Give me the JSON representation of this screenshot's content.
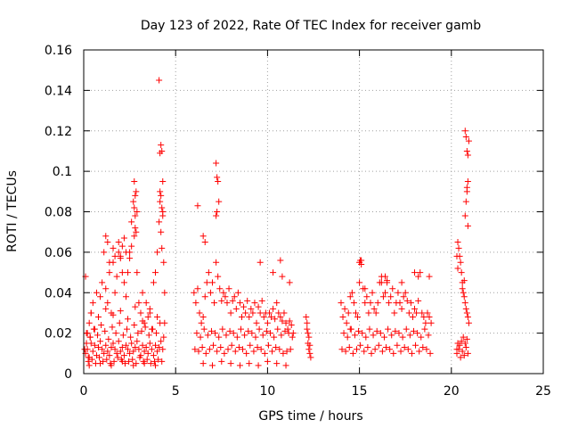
{
  "chart_data": {
    "type": "scatter",
    "title": "Day 123 of 2022, Rate Of TEC Index for receiver gamb",
    "xlabel": "GPS time / hours",
    "ylabel": "ROTI / TECUs",
    "xlim": [
      0,
      25
    ],
    "ylim": [
      0,
      0.16
    ],
    "xticks": [
      0,
      5,
      10,
      15,
      20,
      25
    ],
    "xtick_labels": [
      "0",
      "5",
      "10",
      "15",
      "20",
      "25"
    ],
    "yticks": [
      0,
      0.02,
      0.04,
      0.06,
      0.08,
      0.1,
      0.12,
      0.14,
      0.16
    ],
    "ytick_labels": [
      "0",
      "0.02",
      "0.04",
      "0.06",
      "0.08",
      "0.1",
      "0.12",
      "0.14",
      "0.16"
    ],
    "grid": true,
    "marker": "+",
    "color": "#ff0000",
    "series": [
      {
        "x": [
          0.05,
          0.1,
          0.15,
          0.2,
          0.25,
          0.3,
          0.35,
          0.4,
          0.5,
          0.6,
          0.7,
          0.8,
          0.9,
          1.0,
          1.1,
          1.2,
          1.3,
          1.4,
          1.5,
          1.6,
          1.7,
          1.8,
          1.9,
          2.0,
          2.1,
          2.2,
          2.3,
          2.4,
          2.5,
          2.6,
          2.7,
          2.75,
          2.8,
          2.85,
          2.9,
          3.0,
          3.1,
          3.2,
          3.3,
          3.4,
          3.5,
          3.6,
          3.7,
          3.8,
          3.9,
          4.0,
          4.1,
          4.15,
          4.2,
          4.25,
          4.3,
          4.35,
          4.4,
          0.1,
          0.2,
          0.3,
          0.4,
          0.5,
          0.6,
          0.7,
          0.8,
          0.9,
          1.0,
          1.1,
          1.2,
          1.3,
          1.4,
          1.5,
          1.6,
          1.7,
          1.8,
          1.9,
          2.0,
          2.1,
          2.2,
          2.3,
          2.4,
          2.5,
          2.6,
          2.7,
          2.8,
          2.9,
          3.0,
          3.1,
          3.2,
          3.3,
          3.4,
          3.5,
          3.6,
          3.7,
          3.8,
          3.9,
          4.0,
          4.1,
          4.2,
          4.3,
          0.15,
          0.35,
          0.55,
          0.75,
          0.95,
          1.15,
          1.35,
          1.55,
          1.75,
          1.95,
          2.15,
          2.35,
          2.55,
          2.75,
          2.95,
          3.15,
          3.35,
          3.55,
          3.75,
          3.95,
          4.15,
          4.35,
          0.25,
          0.45,
          0.65,
          0.85,
          1.05,
          1.25,
          1.45,
          1.65,
          1.85,
          2.05,
          2.25,
          2.45,
          2.65,
          2.85,
          3.05,
          3.25,
          3.45,
          3.65,
          3.85,
          4.05,
          4.25,
          0.4,
          0.8,
          1.2,
          1.6,
          2.0,
          2.4,
          2.8,
          3.2,
          3.6,
          4.0,
          4.4,
          0.3,
          0.9,
          1.5,
          2.1,
          2.7,
          3.3,
          3.9,
          2.75,
          2.8,
          2.85,
          2.9,
          2.8,
          2.75,
          4.1,
          4.15,
          4.2,
          4.25,
          4.3,
          4.2,
          4.25,
          4.3,
          4.15,
          1.2,
          1.3,
          1.4,
          1.6,
          1.7,
          1.9,
          2.0,
          2.1,
          2.2,
          2.3,
          2.5,
          2.6,
          6.0,
          6.1,
          6.2,
          6.3,
          6.4,
          6.5,
          6.6,
          6.7,
          6.8,
          6.9,
          7.0,
          7.1,
          7.2,
          7.3,
          7.4,
          7.5,
          7.6,
          7.7,
          7.8,
          7.9,
          8.0,
          8.1,
          8.2,
          8.3,
          8.4,
          8.5,
          8.6,
          8.7,
          8.8,
          8.9,
          9.0,
          9.1,
          9.2,
          9.3,
          9.4,
          9.5,
          9.6,
          9.7,
          9.8,
          9.9,
          10.0,
          10.1,
          10.2,
          10.3,
          10.4,
          10.5,
          10.6,
          10.7,
          10.8,
          10.9,
          11.0,
          11.1,
          11.2,
          11.3,
          11.4,
          6.05,
          6.25,
          6.45,
          6.65,
          6.85,
          7.05,
          7.25,
          7.45,
          7.65,
          7.85,
          8.05,
          8.25,
          8.45,
          8.65,
          8.85,
          9.05,
          9.25,
          9.45,
          9.65,
          9.85,
          10.05,
          10.25,
          10.45,
          10.65,
          10.85,
          11.05,
          11.25,
          6.15,
          6.35,
          6.55,
          6.75,
          6.95,
          7.15,
          7.35,
          7.55,
          7.75,
          7.95,
          8.15,
          8.35,
          8.55,
          8.75,
          8.95,
          9.15,
          9.35,
          9.55,
          9.75,
          9.95,
          10.15,
          10.35,
          10.55,
          10.75,
          10.95,
          11.15,
          11.35,
          6.5,
          7.0,
          7.5,
          8.0,
          8.5,
          9.0,
          9.5,
          10.0,
          10.5,
          11.0,
          6.2,
          7.2,
          7.25,
          7.3,
          7.35,
          7.2,
          7.25,
          6.5,
          6.6,
          9.6,
          10.3,
          10.7,
          10.8,
          11.2,
          12.1,
          12.15,
          12.2,
          12.25,
          12.3,
          12.35,
          12.2,
          12.25,
          12.15,
          12.3,
          14.0,
          14.1,
          14.2,
          14.3,
          14.4,
          14.5,
          14.6,
          14.7,
          14.8,
          14.9,
          15.0,
          15.1,
          15.2,
          15.3,
          15.4,
          15.5,
          15.6,
          15.7,
          15.8,
          15.9,
          16.0,
          16.1,
          16.2,
          16.3,
          16.4,
          16.5,
          16.6,
          16.7,
          16.8,
          16.9,
          17.0,
          17.1,
          17.2,
          17.3,
          17.4,
          17.5,
          17.6,
          17.7,
          17.8,
          17.9,
          18.0,
          18.1,
          18.2,
          18.3,
          18.4,
          18.5,
          18.6,
          18.7,
          18.8,
          18.9,
          14.05,
          14.25,
          14.45,
          14.65,
          14.85,
          15.05,
          15.25,
          15.45,
          15.65,
          15.85,
          16.05,
          16.25,
          16.45,
          16.65,
          16.85,
          17.05,
          17.25,
          17.45,
          17.65,
          17.85,
          18.05,
          18.25,
          18.45,
          18.65,
          18.85,
          14.15,
          14.35,
          14.55,
          14.75,
          14.95,
          15.15,
          15.35,
          15.55,
          15.75,
          15.95,
          16.15,
          16.35,
          16.55,
          16.75,
          16.95,
          17.15,
          17.35,
          17.55,
          17.75,
          17.95,
          18.15,
          18.35,
          18.55,
          18.75,
          15.0,
          15.05,
          15.1,
          14.5,
          15.3,
          16.2,
          16.4,
          16.5,
          17.3,
          18.0,
          18.2,
          18.8,
          20.3,
          20.35,
          20.4,
          20.45,
          20.5,
          20.55,
          20.6,
          20.65,
          20.7,
          20.75,
          20.8,
          20.85,
          20.9,
          20.95,
          20.3,
          20.4,
          20.5,
          20.6,
          20.7,
          20.8,
          20.9,
          20.35,
          20.45,
          20.55,
          20.65,
          20.75,
          20.85,
          20.3,
          20.35,
          20.6,
          20.7,
          20.75,
          20.8,
          20.85,
          20.9,
          20.9,
          20.85,
          20.95,
          20.8,
          20.75,
          20.85,
          20.9
        ],
        "y": [
          0.012,
          0.048,
          0.015,
          0.02,
          0.008,
          0.025,
          0.018,
          0.03,
          0.035,
          0.022,
          0.04,
          0.028,
          0.038,
          0.045,
          0.06,
          0.042,
          0.035,
          0.05,
          0.03,
          0.055,
          0.04,
          0.048,
          0.065,
          0.058,
          0.05,
          0.045,
          0.038,
          0.05,
          0.06,
          0.075,
          0.085,
          0.082,
          0.078,
          0.07,
          0.05,
          0.035,
          0.03,
          0.04,
          0.025,
          0.035,
          0.028,
          0.032,
          0.022,
          0.045,
          0.05,
          0.06,
          0.075,
          0.085,
          0.07,
          0.062,
          0.078,
          0.055,
          0.04,
          0.01,
          0.012,
          0.008,
          0.015,
          0.011,
          0.014,
          0.009,
          0.013,
          0.016,
          0.012,
          0.01,
          0.014,
          0.011,
          0.009,
          0.013,
          0.015,
          0.012,
          0.01,
          0.016,
          0.011,
          0.013,
          0.009,
          0.014,
          0.012,
          0.01,
          0.015,
          0.011,
          0.013,
          0.016,
          0.012,
          0.009,
          0.014,
          0.011,
          0.013,
          0.01,
          0.015,
          0.012,
          0.009,
          0.014,
          0.011,
          0.013,
          0.016,
          0.012,
          0.02,
          0.018,
          0.022,
          0.019,
          0.024,
          0.021,
          0.017,
          0.023,
          0.02,
          0.025,
          0.019,
          0.022,
          0.018,
          0.024,
          0.02,
          0.021,
          0.023,
          0.019,
          0.022,
          0.02,
          0.025,
          0.018,
          0.006,
          0.007,
          0.005,
          0.008,
          0.006,
          0.007,
          0.005,
          0.006,
          0.008,
          0.007,
          0.005,
          0.006,
          0.007,
          0.005,
          0.008,
          0.006,
          0.007,
          0.005,
          0.006,
          0.007,
          0.006,
          0.03,
          0.028,
          0.032,
          0.029,
          0.031,
          0.027,
          0.033,
          0.026,
          0.03,
          0.028,
          0.025,
          0.004,
          0.005,
          0.004,
          0.006,
          0.004,
          0.005,
          0.004,
          0.095,
          0.088,
          0.09,
          0.08,
          0.072,
          0.068,
          0.145,
          0.109,
          0.113,
          0.11,
          0.095,
          0.088,
          0.082,
          0.08,
          0.09,
          0.068,
          0.065,
          0.055,
          0.062,
          0.058,
          0.06,
          0.057,
          0.063,
          0.067,
          0.06,
          0.057,
          0.063,
          0.04,
          0.035,
          0.042,
          0.03,
          0.025,
          0.028,
          0.038,
          0.045,
          0.05,
          0.04,
          0.045,
          0.035,
          0.055,
          0.048,
          0.042,
          0.036,
          0.04,
          0.038,
          0.035,
          0.042,
          0.03,
          0.036,
          0.038,
          0.032,
          0.04,
          0.035,
          0.028,
          0.033,
          0.03,
          0.036,
          0.028,
          0.032,
          0.03,
          0.035,
          0.025,
          0.033,
          0.03,
          0.036,
          0.028,
          0.03,
          0.025,
          0.03,
          0.028,
          0.032,
          0.027,
          0.035,
          0.03,
          0.028,
          0.026,
          0.03,
          0.025,
          0.022,
          0.026,
          0.024,
          0.02,
          0.012,
          0.011,
          0.013,
          0.01,
          0.012,
          0.014,
          0.011,
          0.013,
          0.01,
          0.012,
          0.014,
          0.011,
          0.013,
          0.012,
          0.01,
          0.014,
          0.011,
          0.013,
          0.012,
          0.01,
          0.014,
          0.011,
          0.013,
          0.012,
          0.01,
          0.011,
          0.012,
          0.02,
          0.018,
          0.022,
          0.019,
          0.021,
          0.02,
          0.018,
          0.022,
          0.019,
          0.021,
          0.02,
          0.018,
          0.022,
          0.019,
          0.021,
          0.02,
          0.018,
          0.022,
          0.019,
          0.021,
          0.02,
          0.018,
          0.022,
          0.019,
          0.021,
          0.02,
          0.018,
          0.005,
          0.004,
          0.006,
          0.005,
          0.004,
          0.005,
          0.004,
          0.006,
          0.005,
          0.004,
          0.083,
          0.104,
          0.097,
          0.095,
          0.085,
          0.078,
          0.08,
          0.068,
          0.065,
          0.055,
          0.05,
          0.056,
          0.048,
          0.045,
          0.028,
          0.025,
          0.015,
          0.012,
          0.01,
          0.008,
          0.02,
          0.018,
          0.022,
          0.014,
          0.035,
          0.028,
          0.032,
          0.025,
          0.03,
          0.022,
          0.04,
          0.035,
          0.03,
          0.028,
          0.045,
          0.056,
          0.042,
          0.035,
          0.038,
          0.03,
          0.035,
          0.04,
          0.032,
          0.03,
          0.035,
          0.045,
          0.048,
          0.038,
          0.04,
          0.045,
          0.035,
          0.038,
          0.042,
          0.03,
          0.035,
          0.04,
          0.035,
          0.032,
          0.038,
          0.04,
          0.036,
          0.03,
          0.035,
          0.028,
          0.032,
          0.03,
          0.036,
          0.05,
          0.03,
          0.028,
          0.025,
          0.03,
          0.028,
          0.025,
          0.012,
          0.011,
          0.013,
          0.01,
          0.012,
          0.014,
          0.011,
          0.013,
          0.01,
          0.012,
          0.014,
          0.011,
          0.013,
          0.012,
          0.01,
          0.014,
          0.011,
          0.013,
          0.012,
          0.01,
          0.014,
          0.011,
          0.013,
          0.012,
          0.01,
          0.02,
          0.018,
          0.022,
          0.019,
          0.021,
          0.02,
          0.018,
          0.022,
          0.019,
          0.021,
          0.02,
          0.018,
          0.022,
          0.019,
          0.021,
          0.02,
          0.018,
          0.022,
          0.019,
          0.021,
          0.02,
          0.018,
          0.022,
          0.019,
          0.055,
          0.056,
          0.054,
          0.038,
          0.042,
          0.045,
          0.048,
          0.046,
          0.045,
          0.05,
          0.048,
          0.048,
          0.012,
          0.065,
          0.062,
          0.058,
          0.055,
          0.05,
          0.045,
          0.04,
          0.038,
          0.035,
          0.032,
          0.03,
          0.028,
          0.025,
          0.01,
          0.012,
          0.008,
          0.011,
          0.009,
          0.013,
          0.01,
          0.015,
          0.014,
          0.016,
          0.018,
          0.015,
          0.017,
          0.058,
          0.052,
          0.042,
          0.046,
          0.078,
          0.085,
          0.092,
          0.095,
          0.108,
          0.11,
          0.115,
          0.117,
          0.12,
          0.09,
          0.073
        ]
      }
    ]
  }
}
